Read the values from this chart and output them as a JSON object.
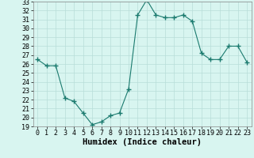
{
  "x": [
    0,
    1,
    2,
    3,
    4,
    5,
    6,
    7,
    8,
    9,
    10,
    11,
    12,
    13,
    14,
    15,
    16,
    17,
    18,
    19,
    20,
    21,
    22,
    23
  ],
  "y": [
    26.5,
    25.8,
    25.8,
    22.2,
    21.8,
    20.5,
    19.2,
    19.5,
    20.2,
    20.5,
    23.2,
    31.5,
    33.2,
    31.5,
    31.2,
    31.2,
    31.5,
    30.8,
    27.2,
    26.5,
    26.5,
    28.0,
    28.0,
    26.2
  ],
  "line_color": "#1a7a6e",
  "marker": "+",
  "marker_size": 4,
  "bg_color": "#d8f5f0",
  "grid_color": "#b8ddd8",
  "xlabel": "Humidex (Indice chaleur)",
  "ylabel": "",
  "xlim": [
    -0.5,
    23.5
  ],
  "ylim": [
    19,
    33
  ],
  "yticks": [
    19,
    20,
    21,
    22,
    23,
    24,
    25,
    26,
    27,
    28,
    29,
    30,
    31,
    32,
    33
  ],
  "xticks": [
    0,
    1,
    2,
    3,
    4,
    5,
    6,
    7,
    8,
    9,
    10,
    11,
    12,
    13,
    14,
    15,
    16,
    17,
    18,
    19,
    20,
    21,
    22,
    23
  ],
  "tick_fontsize": 6.0,
  "xlabel_fontsize": 7.5
}
